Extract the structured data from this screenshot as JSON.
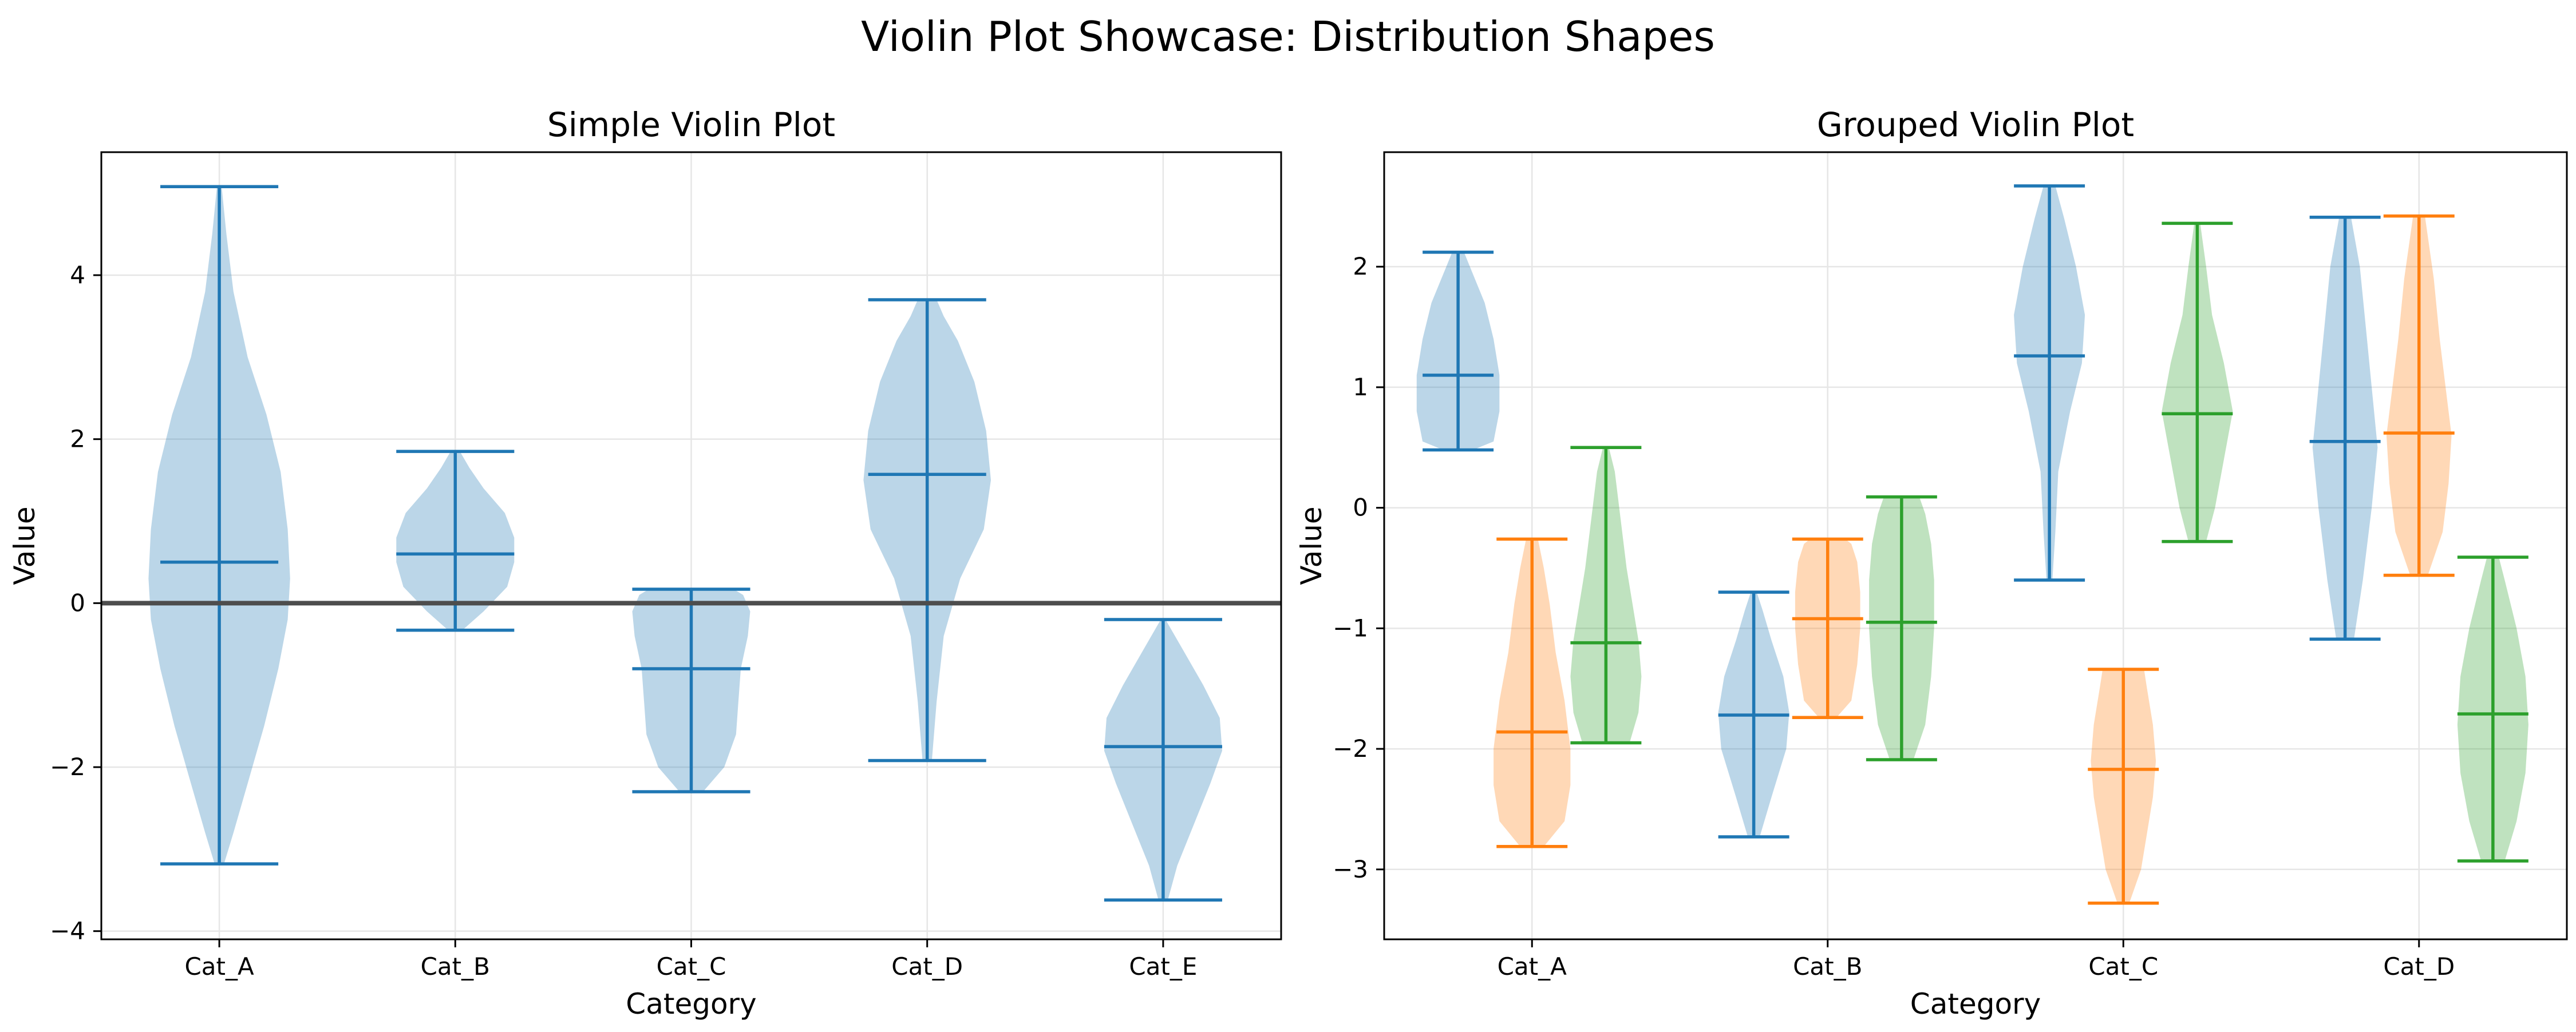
{
  "figure": {
    "suptitle": "Violin Plot Showcase: Distribution Shapes"
  },
  "colors": {
    "blue": "#1f77b4",
    "orange": "#ff7f0e",
    "green": "#2ca02c",
    "refline": "#4d4d4d",
    "grid": "#e6e6e6"
  },
  "chart_data": [
    {
      "type": "violin",
      "title": "Simple Violin Plot",
      "xlabel": "Category",
      "ylabel": "Value",
      "ylim": [
        -4.1,
        5.5
      ],
      "yticks": [
        -4,
        -2,
        0,
        2,
        4
      ],
      "ytick_labels": [
        "−4",
        "−2",
        "0",
        "2",
        "4"
      ],
      "categories": [
        "Cat_A",
        "Cat_B",
        "Cat_C",
        "Cat_D",
        "Cat_E"
      ],
      "grid": true,
      "reference_line_y": 0,
      "violins": [
        {
          "category": "Cat_A",
          "color": "#1f77b4",
          "min": -3.18,
          "max": 5.08,
          "median": 0.5,
          "profile": [
            [
              -3.18,
              0.02
            ],
            [
              -2.8,
              0.06
            ],
            [
              -2.2,
              0.12
            ],
            [
              -1.5,
              0.19
            ],
            [
              -0.8,
              0.25
            ],
            [
              -0.2,
              0.29
            ],
            [
              0.3,
              0.3
            ],
            [
              0.9,
              0.29
            ],
            [
              1.6,
              0.26
            ],
            [
              2.3,
              0.2
            ],
            [
              3.0,
              0.12
            ],
            [
              3.8,
              0.06
            ],
            [
              4.5,
              0.03
            ],
            [
              5.08,
              0.01
            ]
          ]
        },
        {
          "category": "Cat_B",
          "color": "#1f77b4",
          "min": -0.33,
          "max": 1.85,
          "median": 0.6,
          "profile": [
            [
              -0.33,
              0.03
            ],
            [
              -0.1,
              0.12
            ],
            [
              0.2,
              0.22
            ],
            [
              0.5,
              0.25
            ],
            [
              0.8,
              0.25
            ],
            [
              1.1,
              0.21
            ],
            [
              1.4,
              0.12
            ],
            [
              1.65,
              0.06
            ],
            [
              1.85,
              0.02
            ]
          ]
        },
        {
          "category": "Cat_C",
          "color": "#1f77b4",
          "min": -2.3,
          "max": 0.17,
          "median": -0.8,
          "profile": [
            [
              -2.3,
              0.05
            ],
            [
              -2.0,
              0.14
            ],
            [
              -1.6,
              0.19
            ],
            [
              -1.2,
              0.2
            ],
            [
              -0.8,
              0.21
            ],
            [
              -0.4,
              0.24
            ],
            [
              -0.1,
              0.25
            ],
            [
              0.1,
              0.22
            ],
            [
              0.17,
              0.18
            ]
          ]
        },
        {
          "category": "Cat_D",
          "color": "#1f77b4",
          "min": -1.92,
          "max": 3.7,
          "median": 1.57,
          "profile": [
            [
              -1.92,
              0.02
            ],
            [
              -1.2,
              0.04
            ],
            [
              -0.4,
              0.07
            ],
            [
              0.3,
              0.14
            ],
            [
              0.9,
              0.24
            ],
            [
              1.5,
              0.27
            ],
            [
              2.1,
              0.25
            ],
            [
              2.7,
              0.2
            ],
            [
              3.2,
              0.13
            ],
            [
              3.5,
              0.07
            ],
            [
              3.7,
              0.04
            ]
          ]
        },
        {
          "category": "Cat_E",
          "color": "#1f77b4",
          "min": -3.62,
          "max": -0.2,
          "median": -1.75,
          "profile": [
            [
              -3.62,
              0.02
            ],
            [
              -3.2,
              0.06
            ],
            [
              -2.7,
              0.13
            ],
            [
              -2.2,
              0.2
            ],
            [
              -1.8,
              0.25
            ],
            [
              -1.4,
              0.24
            ],
            [
              -1.0,
              0.17
            ],
            [
              -0.6,
              0.09
            ],
            [
              -0.2,
              0.01
            ]
          ]
        }
      ]
    },
    {
      "type": "violin",
      "title": "Grouped Violin Plot",
      "xlabel": "Category",
      "ylabel": "Value",
      "ylim": [
        -3.58,
        2.95
      ],
      "yticks": [
        -3,
        -2,
        -1,
        0,
        1,
        2
      ],
      "ytick_labels": [
        "−3",
        "−2",
        "−1",
        "0",
        "1",
        "2"
      ],
      "categories": [
        "Cat_A",
        "Cat_B",
        "Cat_C",
        "Cat_D"
      ],
      "grid": true,
      "group_offsets": [
        -0.25,
        0,
        0.25
      ],
      "violins": [
        {
          "category": "Cat_A",
          "group": 0,
          "color": "#1f77b4",
          "min": 0.48,
          "max": 2.12,
          "median": 1.1,
          "profile": [
            [
              0.48,
              0.05
            ],
            [
              0.55,
              0.12
            ],
            [
              0.8,
              0.14
            ],
            [
              1.1,
              0.14
            ],
            [
              1.4,
              0.12
            ],
            [
              1.7,
              0.09
            ],
            [
              2.0,
              0.04
            ],
            [
              2.12,
              0.02
            ]
          ]
        },
        {
          "category": "Cat_A",
          "group": 1,
          "color": "#ff7f0e",
          "min": -2.81,
          "max": -0.26,
          "median": -1.86,
          "profile": [
            [
              -2.81,
              0.04
            ],
            [
              -2.6,
              0.11
            ],
            [
              -2.3,
              0.13
            ],
            [
              -2.0,
              0.13
            ],
            [
              -1.6,
              0.11
            ],
            [
              -1.2,
              0.08
            ],
            [
              -0.8,
              0.06
            ],
            [
              -0.5,
              0.04
            ],
            [
              -0.26,
              0.02
            ]
          ]
        },
        {
          "category": "Cat_A",
          "group": 2,
          "color": "#2ca02c",
          "min": -1.95,
          "max": 0.5,
          "median": -1.12,
          "profile": [
            [
              -1.95,
              0.08
            ],
            [
              -1.7,
              0.11
            ],
            [
              -1.4,
              0.12
            ],
            [
              -1.1,
              0.11
            ],
            [
              -0.8,
              0.09
            ],
            [
              -0.5,
              0.07
            ],
            [
              -0.1,
              0.05
            ],
            [
              0.3,
              0.03
            ],
            [
              0.5,
              0.01
            ]
          ]
        },
        {
          "category": "Cat_B",
          "group": 0,
          "color": "#1f77b4",
          "min": -2.73,
          "max": -0.7,
          "median": -1.72,
          "profile": [
            [
              -2.73,
              0.02
            ],
            [
              -2.4,
              0.06
            ],
            [
              -2.0,
              0.11
            ],
            [
              -1.7,
              0.12
            ],
            [
              -1.4,
              0.1
            ],
            [
              -1.1,
              0.06
            ],
            [
              -0.85,
              0.03
            ],
            [
              -0.7,
              0.01
            ]
          ]
        },
        {
          "category": "Cat_B",
          "group": 1,
          "color": "#ff7f0e",
          "min": -1.74,
          "max": -0.26,
          "median": -0.92,
          "profile": [
            [
              -1.74,
              0.03
            ],
            [
              -1.6,
              0.08
            ],
            [
              -1.3,
              0.1
            ],
            [
              -1.0,
              0.11
            ],
            [
              -0.7,
              0.11
            ],
            [
              -0.45,
              0.1
            ],
            [
              -0.3,
              0.08
            ],
            [
              -0.26,
              0.06
            ]
          ]
        },
        {
          "category": "Cat_B",
          "group": 2,
          "color": "#2ca02c",
          "min": -2.09,
          "max": 0.09,
          "median": -0.95,
          "profile": [
            [
              -2.09,
              0.04
            ],
            [
              -1.8,
              0.08
            ],
            [
              -1.4,
              0.1
            ],
            [
              -1.0,
              0.11
            ],
            [
              -0.6,
              0.11
            ],
            [
              -0.3,
              0.1
            ],
            [
              -0.05,
              0.08
            ],
            [
              0.09,
              0.06
            ]
          ]
        },
        {
          "category": "Cat_C",
          "group": 0,
          "color": "#1f77b4",
          "min": -0.6,
          "max": 2.67,
          "median": 1.26,
          "profile": [
            [
              -0.6,
              0.01
            ],
            [
              -0.2,
              0.02
            ],
            [
              0.3,
              0.03
            ],
            [
              0.8,
              0.07
            ],
            [
              1.2,
              0.11
            ],
            [
              1.6,
              0.12
            ],
            [
              2.0,
              0.09
            ],
            [
              2.4,
              0.05
            ],
            [
              2.67,
              0.02
            ]
          ]
        },
        {
          "category": "Cat_C",
          "group": 1,
          "color": "#ff7f0e",
          "min": -3.28,
          "max": -1.34,
          "median": -2.17,
          "profile": [
            [
              -3.28,
              0.02
            ],
            [
              -3.0,
              0.06
            ],
            [
              -2.7,
              0.08
            ],
            [
              -2.4,
              0.1
            ],
            [
              -2.1,
              0.11
            ],
            [
              -1.8,
              0.1
            ],
            [
              -1.5,
              0.08
            ],
            [
              -1.34,
              0.07
            ]
          ]
        },
        {
          "category": "Cat_C",
          "group": 2,
          "color": "#2ca02c",
          "min": -0.28,
          "max": 2.36,
          "median": 0.78,
          "profile": [
            [
              -0.28,
              0.03
            ],
            [
              0.0,
              0.06
            ],
            [
              0.4,
              0.09
            ],
            [
              0.8,
              0.12
            ],
            [
              1.2,
              0.09
            ],
            [
              1.6,
              0.05
            ],
            [
              2.0,
              0.03
            ],
            [
              2.36,
              0.01
            ]
          ]
        },
        {
          "category": "Cat_D",
          "group": 0,
          "color": "#1f77b4",
          "min": -1.09,
          "max": 2.41,
          "median": 0.55,
          "profile": [
            [
              -1.09,
              0.03
            ],
            [
              -0.6,
              0.06
            ],
            [
              0.0,
              0.09
            ],
            [
              0.5,
              0.11
            ],
            [
              1.0,
              0.09
            ],
            [
              1.5,
              0.07
            ],
            [
              2.0,
              0.05
            ],
            [
              2.41,
              0.02
            ]
          ]
        },
        {
          "category": "Cat_D",
          "group": 1,
          "color": "#ff7f0e",
          "min": -0.56,
          "max": 2.42,
          "median": 0.62,
          "profile": [
            [
              -0.56,
              0.03
            ],
            [
              -0.2,
              0.08
            ],
            [
              0.2,
              0.1
            ],
            [
              0.6,
              0.11
            ],
            [
              1.0,
              0.09
            ],
            [
              1.4,
              0.07
            ],
            [
              1.9,
              0.05
            ],
            [
              2.42,
              0.02
            ]
          ]
        },
        {
          "category": "Cat_D",
          "group": 2,
          "color": "#2ca02c",
          "min": -2.93,
          "max": -0.41,
          "median": -1.71,
          "profile": [
            [
              -2.93,
              0.04
            ],
            [
              -2.6,
              0.08
            ],
            [
              -2.2,
              0.11
            ],
            [
              -1.8,
              0.12
            ],
            [
              -1.4,
              0.11
            ],
            [
              -1.0,
              0.08
            ],
            [
              -0.6,
              0.04
            ],
            [
              -0.41,
              0.02
            ]
          ]
        }
      ]
    }
  ]
}
